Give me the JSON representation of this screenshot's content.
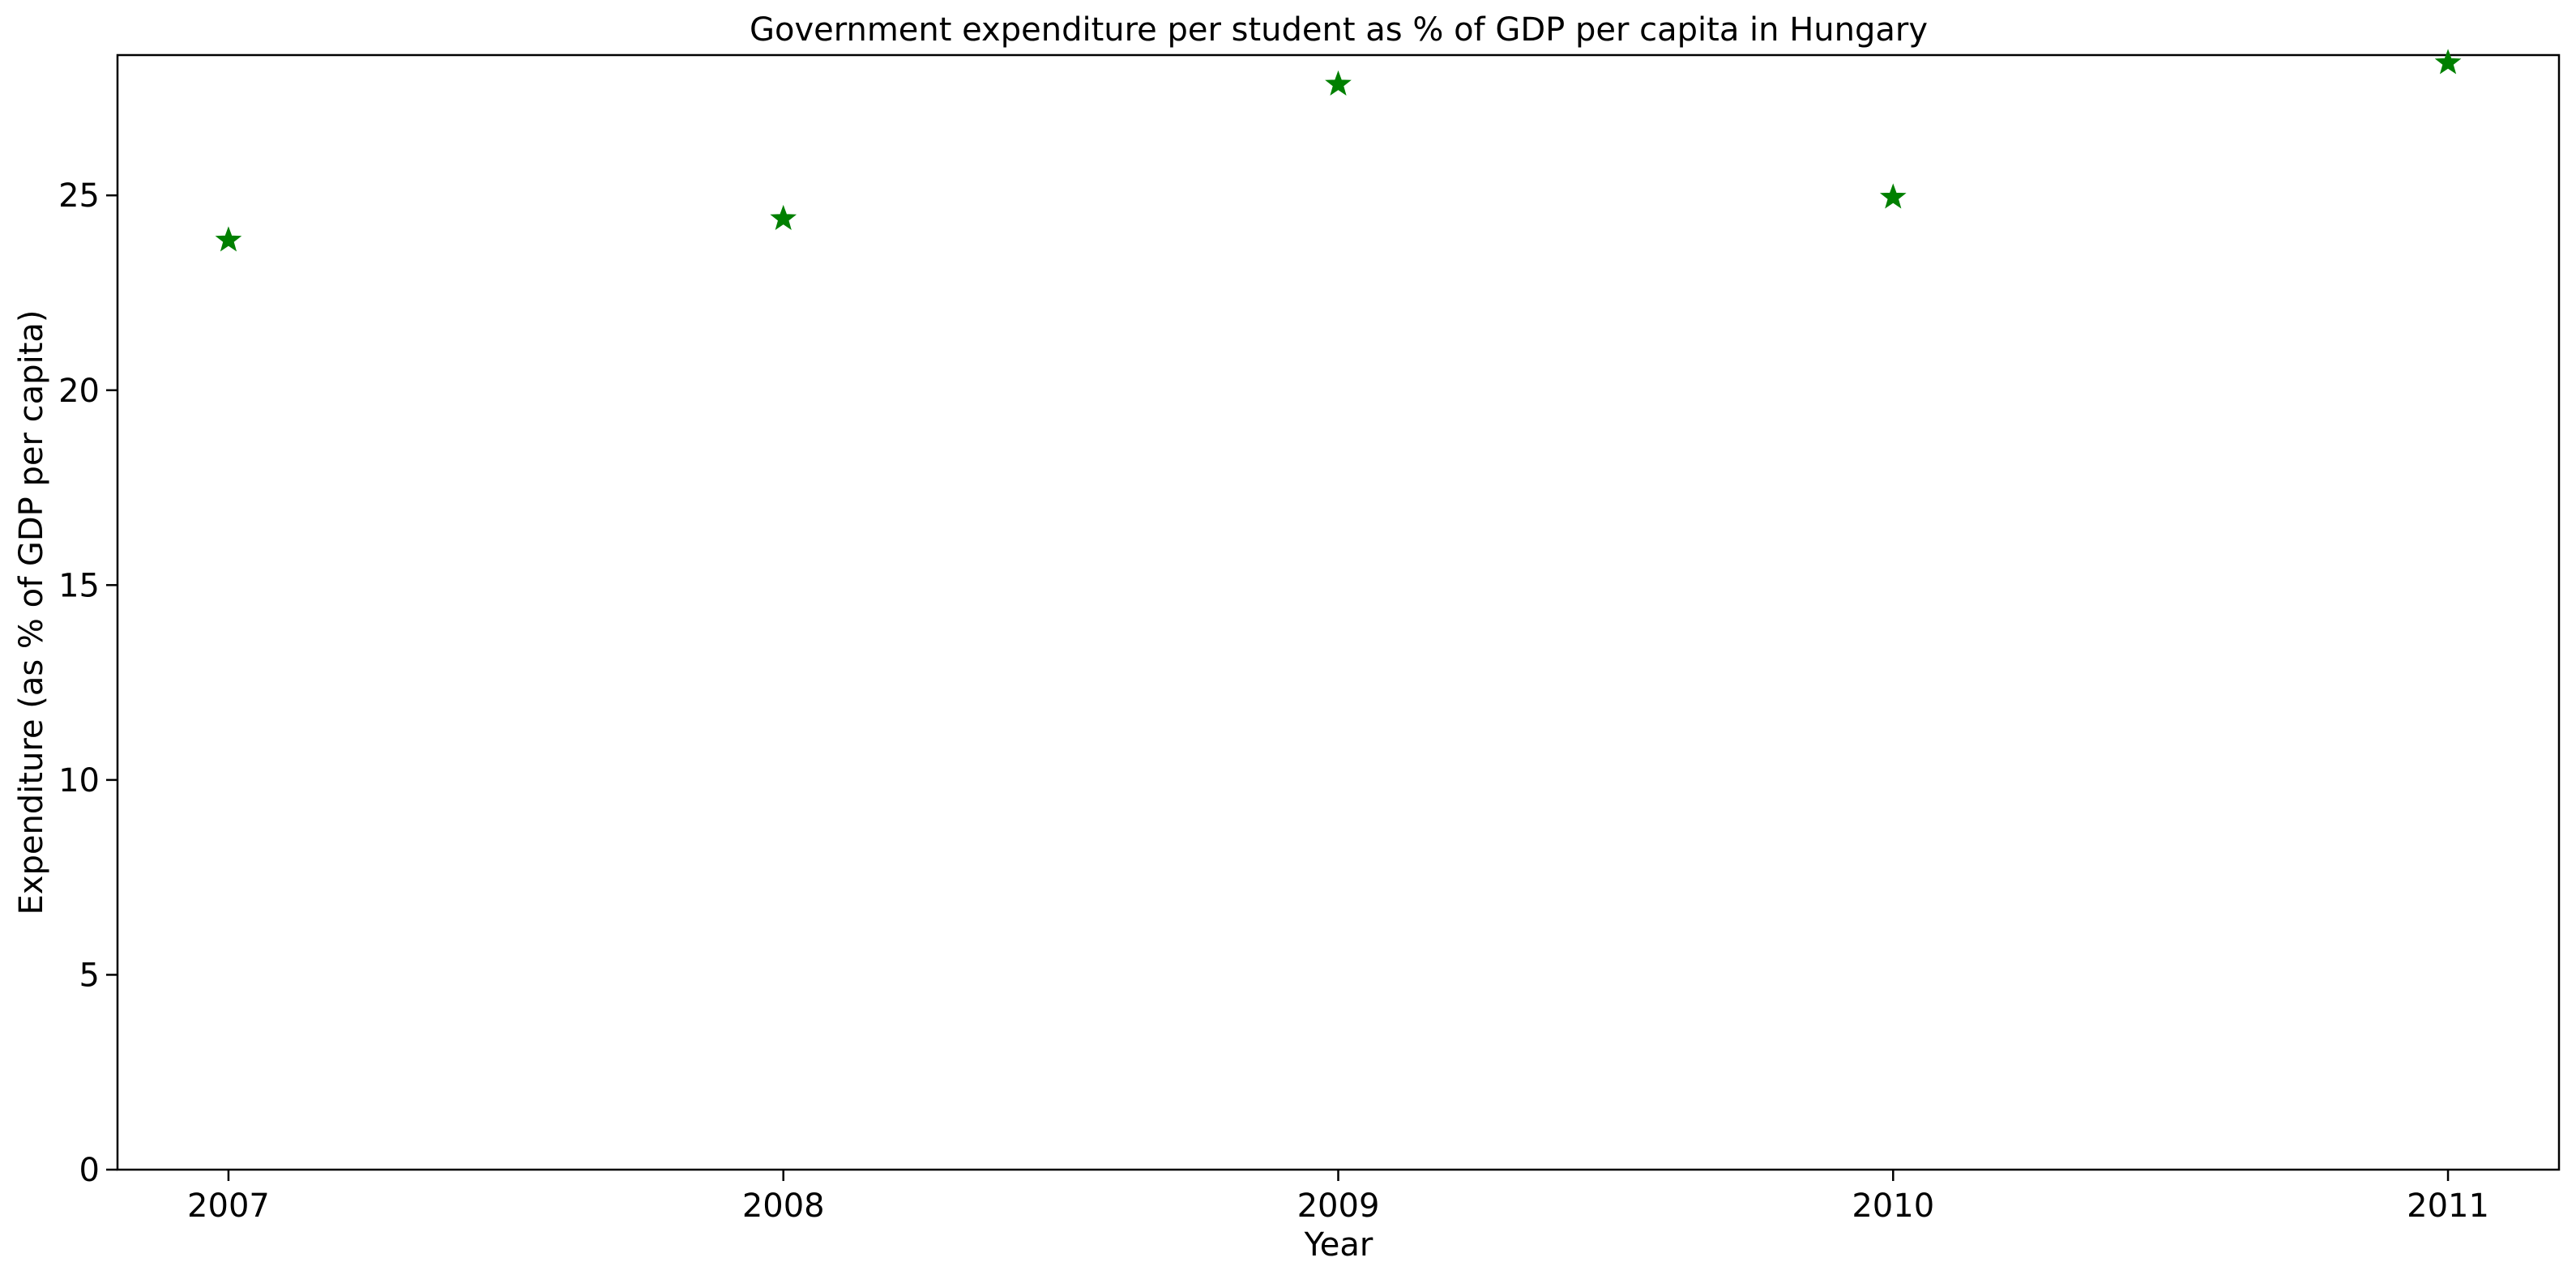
{
  "chart_data": {
    "type": "scatter",
    "title": "Government expenditure per student as % of GDP per capita in Hungary",
    "xlabel": "Year",
    "ylabel": "Expenditure (as % of GDP per capita)",
    "x": [
      2007,
      2008,
      2009,
      2010,
      2011
    ],
    "x_tick_labels": [
      "2007",
      "2008",
      "2009",
      "2010",
      "2011"
    ],
    "y_ticks": [
      0,
      5,
      10,
      15,
      20,
      25
    ],
    "y_tick_labels": [
      "0",
      "5",
      "10",
      "15",
      "20",
      "25"
    ],
    "series": [
      {
        "values": [
          23.85,
          24.4,
          27.85,
          24.95,
          28.4
        ],
        "marker": "star",
        "color": "#008000"
      }
    ],
    "xlim": [
      2006.8,
      2011.2
    ],
    "ylim": [
      0,
      28.6
    ],
    "grid": false,
    "legend": "none"
  }
}
